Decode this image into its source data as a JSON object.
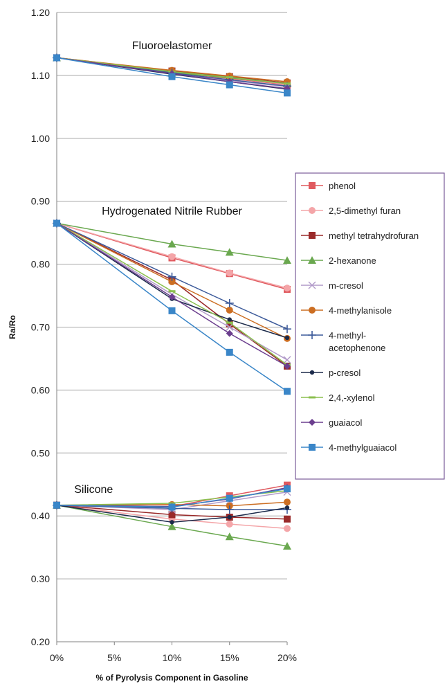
{
  "chart_data": {
    "type": "line",
    "x": [
      "0%",
      "5%",
      "10%",
      "15%",
      "20%"
    ],
    "x_values": [
      0,
      5,
      10,
      15,
      20
    ],
    "xlabel": "% of Pyrolysis Component in Gasoline",
    "ylabel": "Ra/Ro",
    "ylim": [
      0.2,
      1.2
    ],
    "yticks": [
      "0.20",
      "0.30",
      "0.40",
      "0.50",
      "0.60",
      "0.70",
      "0.80",
      "0.90",
      "1.00",
      "1.10",
      "1.20"
    ],
    "ytick_values": [
      0.2,
      0.3,
      0.4,
      0.5,
      0.6,
      0.7,
      0.8,
      0.9,
      1.0,
      1.1,
      1.2
    ],
    "grid": "horizontal",
    "legend_position": "right",
    "annotations": [
      {
        "text": "Fluoroelastomer",
        "x": 10,
        "y": 1.135
      },
      {
        "text": "Hydrogenated  Nitrile Rubber",
        "x": 10,
        "y": 0.872
      },
      {
        "text": "Silicone",
        "x": 3.2,
        "y": 0.43
      }
    ],
    "series": [
      {
        "name": "phenol",
        "color": "#e05a5f",
        "marker": "square",
        "groups": [
          [
            [
              0,
              1.128
            ],
            [
              10,
              1.105
            ],
            [
              15,
              1.095
            ],
            [
              20,
              1.085
            ]
          ],
          [
            [
              0,
              0.865
            ],
            [
              10,
              0.81
            ],
            [
              15,
              0.785
            ],
            [
              20,
              0.76
            ]
          ],
          [
            [
              0,
              0.417
            ],
            [
              10,
              0.415
            ],
            [
              15,
              0.432
            ],
            [
              20,
              0.449
            ]
          ]
        ]
      },
      {
        "name": "2,5-dimethyl furan",
        "color": "#f4a5a8",
        "marker": "circle",
        "groups": [
          [
            [
              0,
              1.128
            ],
            [
              10,
              1.106
            ],
            [
              15,
              1.096
            ],
            [
              20,
              1.086
            ]
          ],
          [
            [
              0,
              0.865
            ],
            [
              10,
              0.812
            ],
            [
              15,
              0.786
            ],
            [
              20,
              0.762
            ]
          ],
          [
            [
              0,
              0.417
            ],
            [
              10,
              0.395
            ],
            [
              15,
              0.387
            ],
            [
              20,
              0.38
            ]
          ]
        ]
      },
      {
        "name": "methyl tetrahydrofuran",
        "color": "#9a2a2a",
        "marker": "square",
        "groups": [
          [
            [
              0,
              1.128
            ],
            [
              10,
              1.107
            ],
            [
              15,
              1.098
            ],
            [
              20,
              1.088
            ]
          ],
          [
            [
              0,
              0.865
            ],
            [
              10,
              0.775
            ],
            [
              15,
              0.705
            ],
            [
              20,
              0.638
            ]
          ],
          [
            [
              0,
              0.417
            ],
            [
              10,
              0.402
            ],
            [
              15,
              0.398
            ],
            [
              20,
              0.395
            ]
          ]
        ]
      },
      {
        "name": "2-hexanone",
        "color": "#6aa84f",
        "marker": "triangle",
        "groups": [
          [
            [
              0,
              1.128
            ],
            [
              10,
              1.105
            ],
            [
              15,
              1.096
            ],
            [
              20,
              1.087
            ]
          ],
          [
            [
              0,
              0.865
            ],
            [
              10,
              0.832
            ],
            [
              15,
              0.819
            ],
            [
              20,
              0.806
            ]
          ],
          [
            [
              0,
              0.417
            ],
            [
              10,
              0.383
            ],
            [
              15,
              0.367
            ],
            [
              20,
              0.352
            ]
          ]
        ]
      },
      {
        "name": "m-cresol",
        "color": "#b19ac9",
        "marker": "x",
        "groups": [
          [
            [
              0,
              1.128
            ],
            [
              10,
              1.103
            ],
            [
              15,
              1.092
            ],
            [
              20,
              1.082
            ]
          ],
          [
            [
              0,
              0.865
            ],
            [
              10,
              0.752
            ],
            [
              15,
              0.7
            ],
            [
              20,
              0.648
            ]
          ],
          [
            [
              0,
              0.417
            ],
            [
              10,
              0.41
            ],
            [
              15,
              0.424
            ],
            [
              20,
              0.438
            ]
          ]
        ]
      },
      {
        "name": "4-methylanisole",
        "color": "#cc6e22",
        "marker": "circle",
        "groups": [
          [
            [
              0,
              1.128
            ],
            [
              10,
              1.108
            ],
            [
              15,
              1.099
            ],
            [
              20,
              1.09
            ]
          ],
          [
            [
              0,
              0.865
            ],
            [
              10,
              0.772
            ],
            [
              15,
              0.727
            ],
            [
              20,
              0.682
            ]
          ],
          [
            [
              0,
              0.417
            ],
            [
              10,
              0.418
            ],
            [
              15,
              0.416
            ],
            [
              20,
              0.422
            ]
          ]
        ]
      },
      {
        "name": "4-methyl-acetophenone",
        "label_lines": [
          "4-methyl-",
          "acetophenone"
        ],
        "color": "#3c5a9a",
        "marker": "plus",
        "groups": [
          [
            [
              0,
              1.128
            ],
            [
              10,
              1.104
            ],
            [
              15,
              1.093
            ],
            [
              20,
              1.083
            ]
          ],
          [
            [
              0,
              0.865
            ],
            [
              10,
              0.78
            ],
            [
              15,
              0.738
            ],
            [
              20,
              0.697
            ]
          ],
          [
            [
              0,
              0.417
            ],
            [
              10,
              0.412
            ],
            [
              15,
              0.41
            ],
            [
              20,
              0.41
            ]
          ]
        ]
      },
      {
        "name": "p-cresol",
        "color": "#1b2a4a",
        "marker": "dot",
        "groups": [
          [
            [
              0,
              1.128
            ],
            [
              10,
              1.102
            ],
            [
              15,
              1.09
            ],
            [
              20,
              1.078
            ]
          ],
          [
            [
              0,
              0.865
            ],
            [
              10,
              0.745
            ],
            [
              15,
              0.712
            ],
            [
              20,
              0.683
            ]
          ],
          [
            [
              0,
              0.417
            ],
            [
              10,
              0.39
            ],
            [
              15,
              0.398
            ],
            [
              20,
              0.413
            ]
          ]
        ]
      },
      {
        "name": "2,4,-xylenol",
        "color": "#8bbf4f",
        "marker": "dash",
        "groups": [
          [
            [
              0,
              1.128
            ],
            [
              10,
              1.106
            ],
            [
              15,
              1.097
            ],
            [
              20,
              1.087
            ]
          ],
          [
            [
              0,
              0.865
            ],
            [
              10,
              0.757
            ],
            [
              15,
              0.707
            ],
            [
              20,
              0.64
            ]
          ],
          [
            [
              0,
              0.417
            ],
            [
              10,
              0.42
            ],
            [
              15,
              0.43
            ],
            [
              20,
              0.44
            ]
          ]
        ]
      },
      {
        "name": "guaiacol",
        "color": "#6b3e8e",
        "marker": "diamond",
        "groups": [
          [
            [
              0,
              1.128
            ],
            [
              10,
              1.103
            ],
            [
              15,
              1.09
            ],
            [
              20,
              1.079
            ]
          ],
          [
            [
              0,
              0.865
            ],
            [
              10,
              0.748
            ],
            [
              15,
              0.69
            ],
            [
              20,
              0.638
            ]
          ],
          [
            [
              0,
              0.417
            ],
            [
              10,
              0.415
            ],
            [
              15,
              0.427
            ],
            [
              20,
              0.445
            ]
          ]
        ]
      },
      {
        "name": "4-methylguaiacol",
        "color": "#3a86c8",
        "marker": "square",
        "groups": [
          [
            [
              0,
              1.128
            ],
            [
              10,
              1.098
            ],
            [
              15,
              1.085
            ],
            [
              20,
              1.072
            ]
          ],
          [
            [
              0,
              0.865
            ],
            [
              10,
              0.726
            ],
            [
              15,
              0.66
            ],
            [
              20,
              0.598
            ]
          ],
          [
            [
              0,
              0.417
            ],
            [
              10,
              0.414
            ],
            [
              15,
              0.428
            ],
            [
              20,
              0.443
            ]
          ]
        ]
      }
    ]
  }
}
